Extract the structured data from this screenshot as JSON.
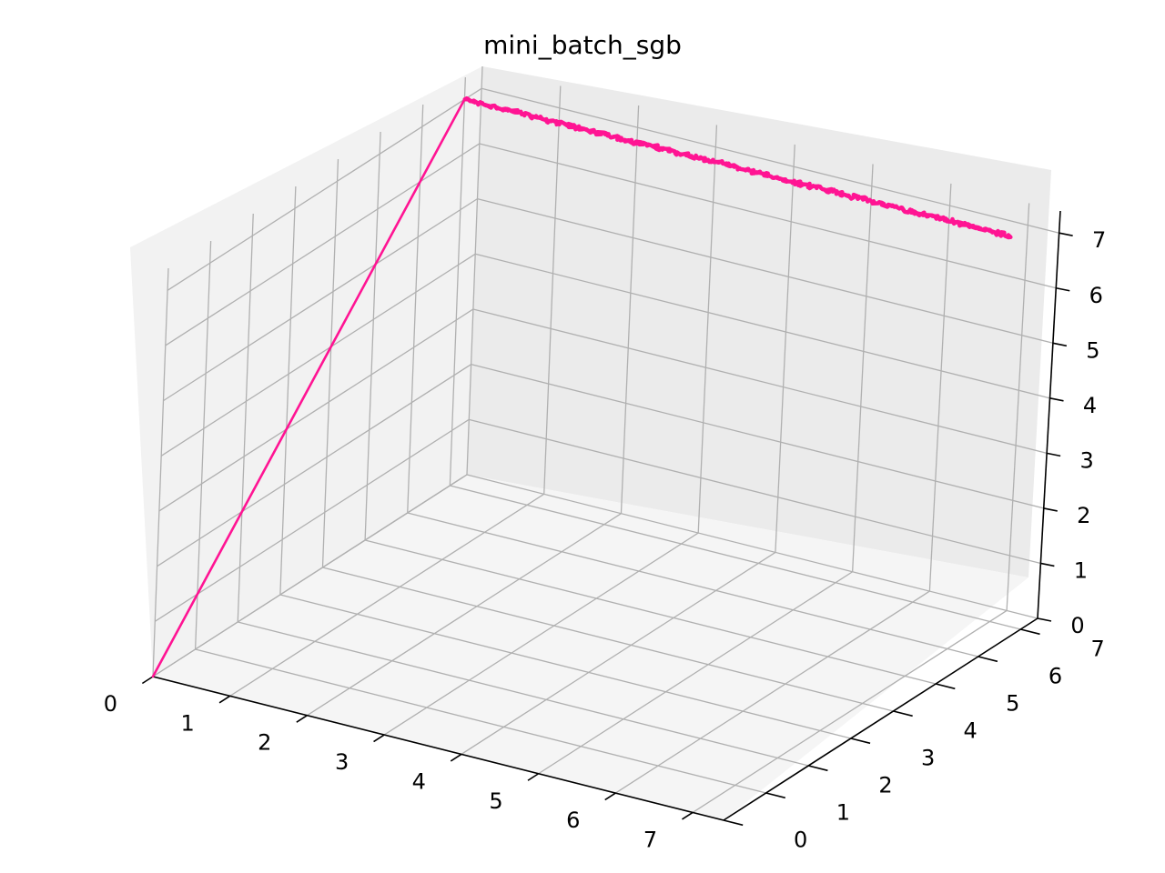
{
  "chart_data": {
    "type": "line",
    "projection": "3d",
    "title": "mini_batch_sgb",
    "xlabel": "",
    "ylabel": "",
    "zlabel": "",
    "xlim": [
      0,
      7.4
    ],
    "ylim": [
      0,
      7.4
    ],
    "zlim": [
      0,
      7.4
    ],
    "x_ticks": [
      "0",
      "1",
      "2",
      "3",
      "4",
      "5",
      "6",
      "7"
    ],
    "y_ticks": [
      "0",
      "1",
      "2",
      "3",
      "4",
      "5",
      "6",
      "7"
    ],
    "z_ticks": [
      "0",
      "1",
      "2",
      "3",
      "4",
      "5",
      "6",
      "7"
    ],
    "grid": true,
    "pane_colors": {
      "left": "#f2f2f2",
      "back": "#ebebeb",
      "floor": "#f5f5f5"
    },
    "series": [
      {
        "color": "#ff1493",
        "jump_from": [
          0,
          0,
          0
        ],
        "jump_to": [
          0,
          7.0,
          7.0
        ],
        "steady_start": [
          0,
          7.0,
          7.0
        ],
        "steady_end": [
          7.0,
          7.0,
          7.0
        ],
        "noise_amplitude": 0.06
      }
    ]
  }
}
